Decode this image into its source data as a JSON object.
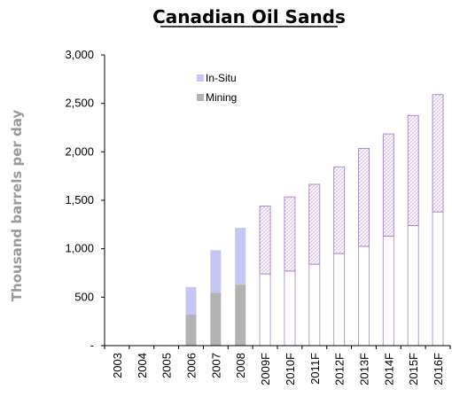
{
  "chart_data": {
    "type": "bar",
    "stacked": true,
    "title": "Canadian Oil Sands",
    "ylabel": "Thousand barrels per day",
    "xlabel": "",
    "ylim": [
      0,
      3000
    ],
    "yticks": [
      0,
      500,
      1000,
      1500,
      2000,
      2500,
      3000
    ],
    "ytick_labels": [
      "-",
      "500",
      "1,000",
      "1,500",
      "2,000",
      "2,500",
      "3,000"
    ],
    "grid": false,
    "legend_position": "top-center",
    "categories": [
      "2003",
      "2004",
      "2005",
      "2006",
      "2007",
      "2008",
      "2009F",
      "2010F",
      "2011F",
      "2012F",
      "2013F",
      "2014F",
      "2015F",
      "2016F"
    ],
    "forecast_from_index": 6,
    "series": [
      {
        "name": "Mining",
        "color": "#b3b3b3",
        "forecast_style": "outline-white",
        "forecast_stroke": "#b89ad6",
        "values": [
          0,
          0,
          0,
          320,
          545,
          630,
          740,
          770,
          840,
          950,
          1025,
          1130,
          1240,
          1380
        ]
      },
      {
        "name": "In-Situ",
        "color": "#c6c6f5",
        "forecast_style": "hatched",
        "forecast_stroke": "#b089d0",
        "values": [
          0,
          0,
          0,
          285,
          440,
          585,
          700,
          765,
          825,
          895,
          1010,
          1055,
          1135,
          1210
        ]
      }
    ]
  }
}
